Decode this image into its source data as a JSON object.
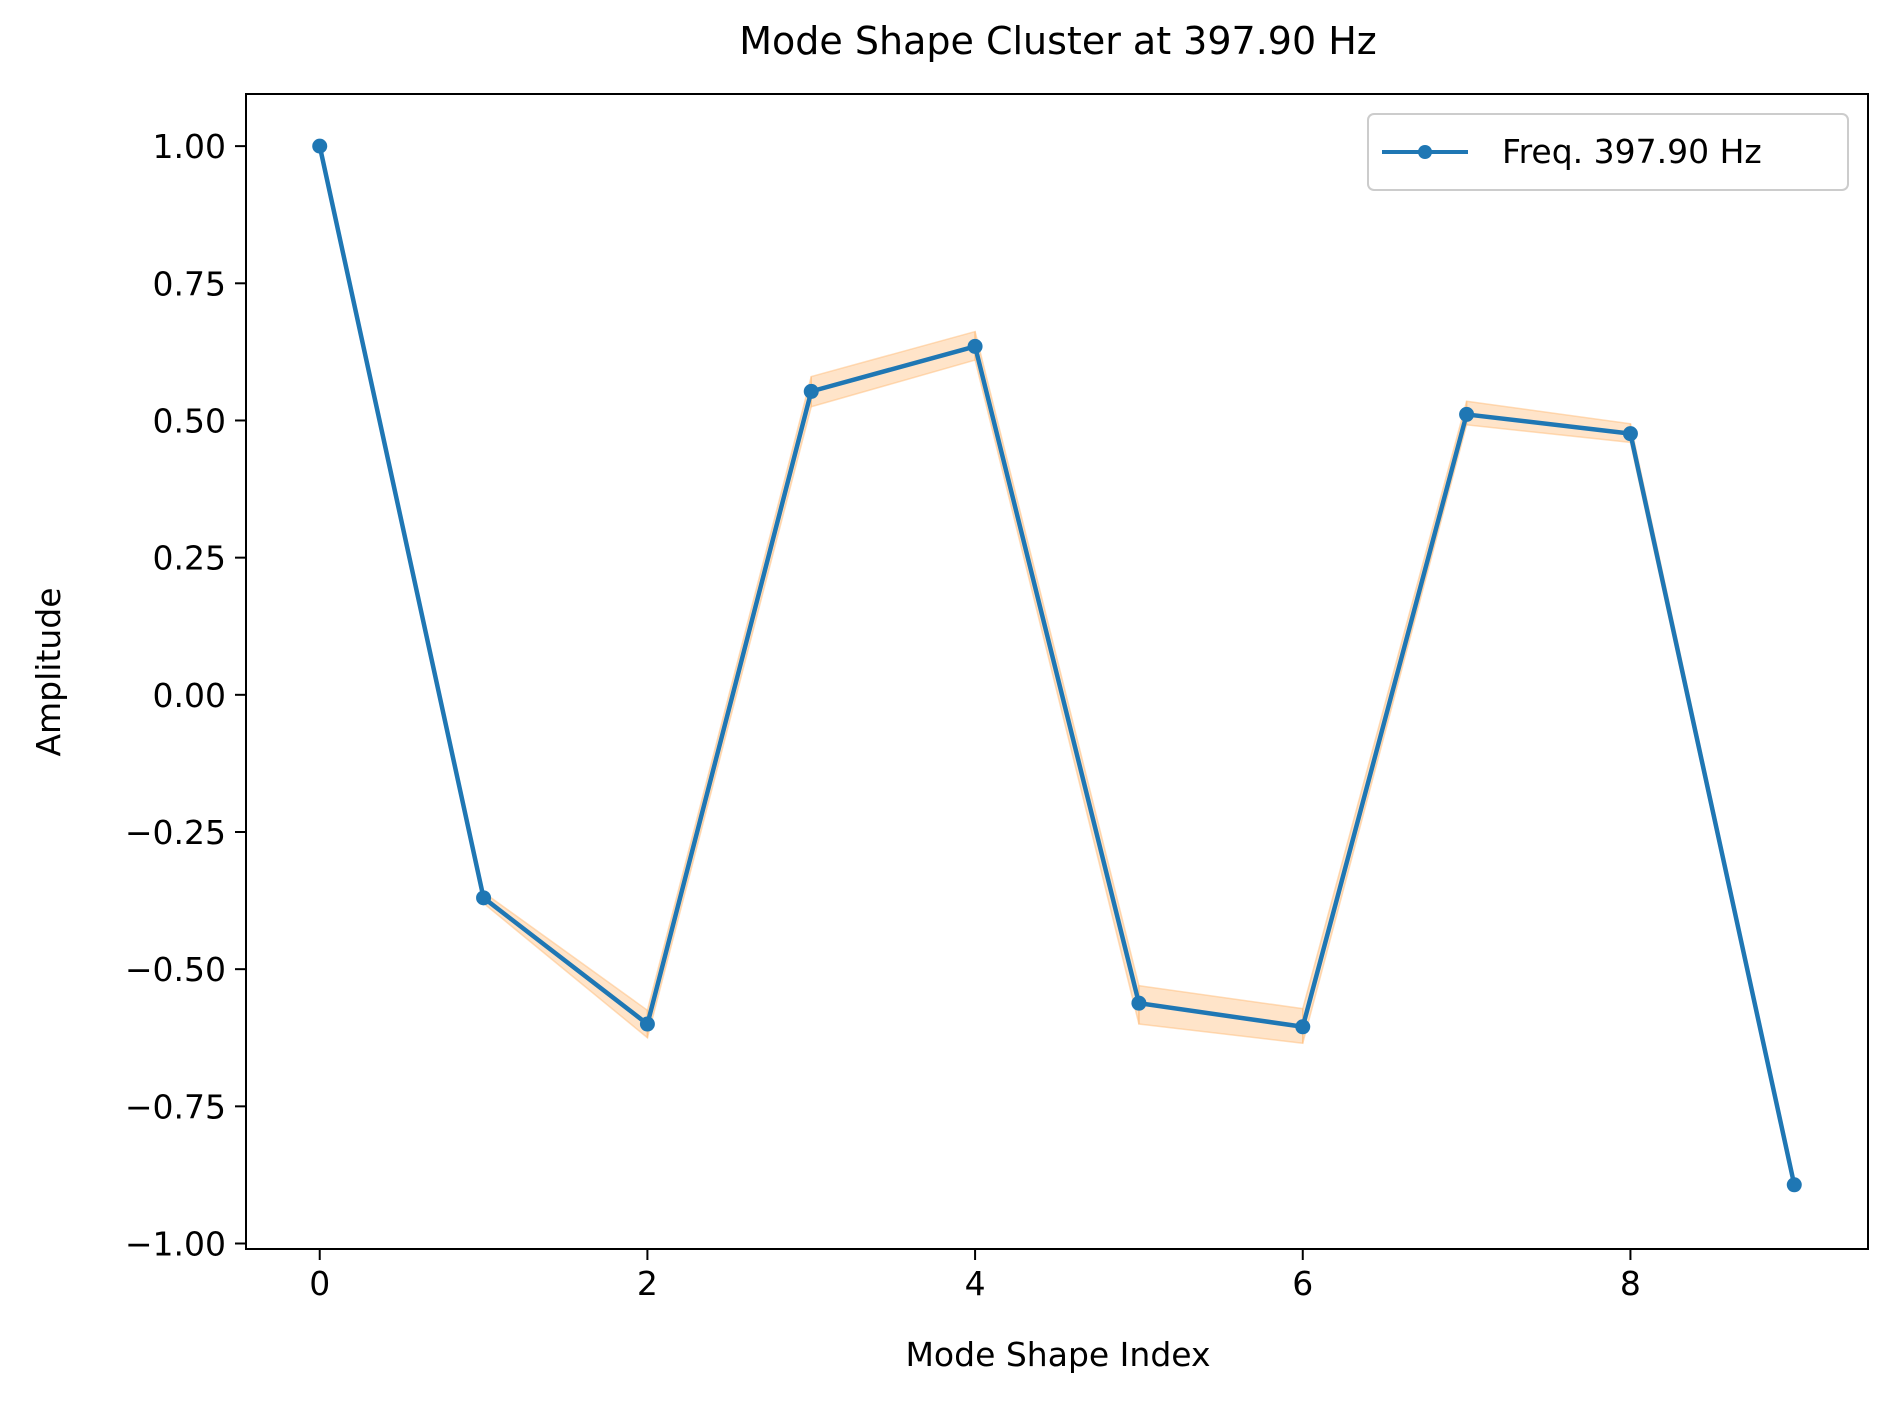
{
  "chart_data": {
    "type": "line",
    "title": "Mode Shape Cluster at 397.90 Hz",
    "xlabel": "Mode Shape Index",
    "ylabel": "Amplitude",
    "x": [
      0,
      1,
      2,
      3,
      4,
      5,
      6,
      7,
      8,
      9
    ],
    "xlim": [
      -0.45,
      9.45
    ],
    "ylim": [
      -1.01,
      1.095
    ],
    "xticks": [
      0,
      2,
      4,
      6,
      8
    ],
    "xtick_labels": [
      "0",
      "2",
      "4",
      "6",
      "8"
    ],
    "yticks": [
      1.0,
      0.75,
      0.5,
      0.25,
      0.0,
      -0.25,
      -0.5,
      -0.75,
      -1.0
    ],
    "ytick_labels": [
      "1.00",
      "0.75",
      "0.50",
      "0.25",
      "0.00",
      "−0.25",
      "−0.50",
      "−0.75",
      "−1.00"
    ],
    "grid": false,
    "legend_position": "top-right",
    "series": [
      {
        "name": "Freq. 397.90 Hz",
        "color": "#1f77b4",
        "marker": "circle",
        "values": [
          1.0,
          -0.37,
          -0.6,
          0.553,
          0.635,
          -0.562,
          -0.605,
          0.511,
          0.476,
          -0.893
        ],
        "band_lower": [
          1.0,
          -0.38,
          -0.625,
          0.525,
          0.61,
          -0.6,
          -0.635,
          0.492,
          0.46,
          -0.9
        ],
        "band_upper": [
          1.0,
          -0.36,
          -0.575,
          0.58,
          0.662,
          -0.53,
          -0.572,
          0.535,
          0.494,
          -0.887
        ],
        "band_color": "#ffbb78"
      }
    ]
  }
}
